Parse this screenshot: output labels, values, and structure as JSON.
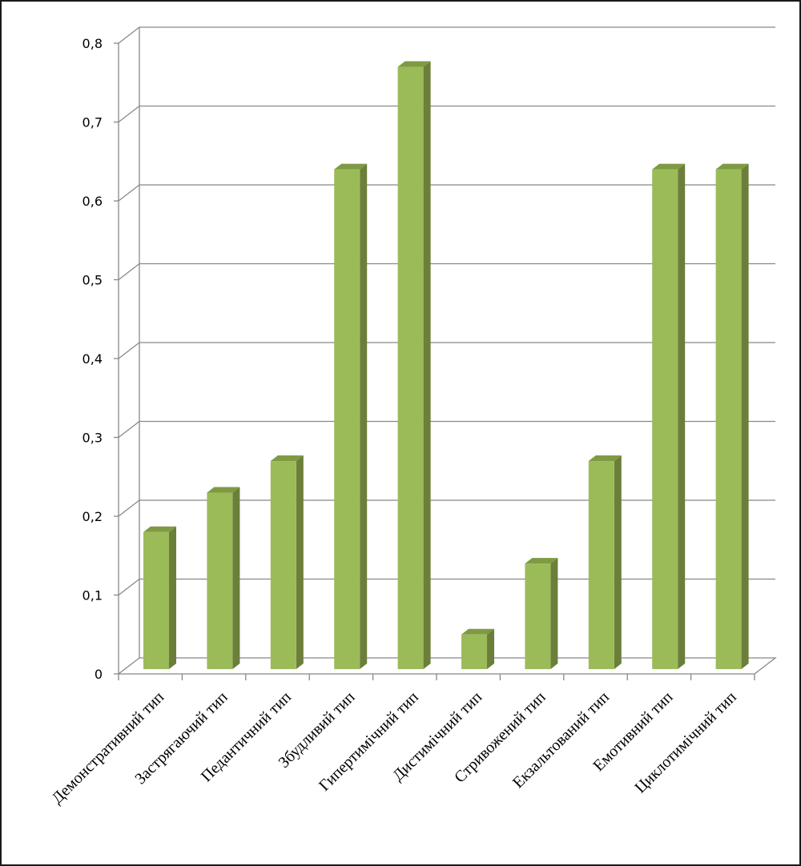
{
  "chart_data": {
    "type": "bar",
    "categories": [
      "Демонстративний тип",
      "Застрягаючий тип",
      "Педантичний тип",
      "Збудливий тип",
      "Гипертимічний тип",
      "Дистимічний тип",
      "Стривожений тип",
      "Екзальтований тип",
      "Емотивний тип",
      "Циклотимічний тип"
    ],
    "values": [
      0.18,
      0.23,
      0.27,
      0.64,
      0.77,
      0.05,
      0.14,
      0.27,
      0.64,
      0.64
    ],
    "yticks": [
      "0",
      "0,1",
      "0,2",
      "0,3",
      "0,4",
      "0,5",
      "0,6",
      "0,7",
      "0,8"
    ],
    "ylim": [
      0,
      0.8
    ],
    "grid": true,
    "legend": "none",
    "style": "3d-column",
    "colors": {
      "bar_front": "#9bbb59",
      "bar_side": "#6b7f3a",
      "bar_top": "#7f9a42",
      "grid": "#888888",
      "axis": "#888888"
    }
  }
}
